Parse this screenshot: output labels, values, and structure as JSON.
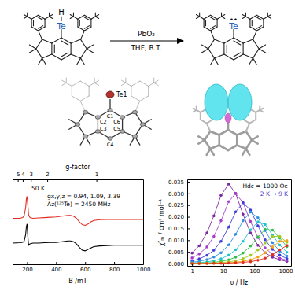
{
  "scheme": {
    "reactant_labels": [
      "H",
      "Te"
    ],
    "reagent": "PbO₂",
    "conditions": "THF, R.T.",
    "product_label": "Te"
  },
  "crystal_structure": {
    "atom_labels": [
      "Te1",
      "C1",
      "C2",
      "C3",
      "C4",
      "C5",
      "C6"
    ]
  },
  "chart_data": [
    {
      "type": "line",
      "x2label": "g-factor",
      "xlabel": "B /mT",
      "xlim": [
        100,
        1000
      ],
      "xticks": [
        200,
        400,
        600,
        800,
        1000
      ],
      "x2ticks": [
        {
          "value": 136,
          "label": "5"
        },
        {
          "value": 170,
          "label": "4"
        },
        {
          "value": 226,
          "label": "3"
        },
        {
          "value": 339,
          "label": "2"
        },
        {
          "value": 678,
          "label": "1"
        }
      ],
      "ylim": [
        0,
        12
      ],
      "yticks": [],
      "tick_labels": "x",
      "x": [
        100,
        150,
        170,
        180,
        190,
        195,
        200,
        205,
        210,
        220,
        240,
        280,
        320,
        360,
        400,
        440,
        480,
        500,
        520,
        540,
        560,
        580,
        600,
        620,
        640,
        660,
        700,
        750,
        800,
        850,
        900,
        950,
        1000
      ],
      "series": [
        {
          "color": "#e32b22",
          "values": [
            6.5,
            6.5,
            6.6,
            6.9,
            8.0,
            9.2,
            9.6,
            8.4,
            7.0,
            6.6,
            6.5,
            6.55,
            6.6,
            6.65,
            6.7,
            6.8,
            6.9,
            6.9,
            6.8,
            6.5,
            6.0,
            5.6,
            5.5,
            5.7,
            6.0,
            6.2,
            6.3,
            6.35,
            6.35,
            6.35,
            6.35,
            6.35,
            6.35
          ]
        },
        {
          "color": "#000000",
          "values": [
            3.0,
            3.05,
            3.1,
            3.3,
            4.2,
            5.3,
            5.7,
            4.0,
            2.7,
            2.9,
            3.0,
            3.0,
            3.05,
            3.1,
            3.1,
            3.2,
            3.3,
            3.3,
            3.2,
            2.9,
            2.4,
            2.0,
            1.9,
            2.1,
            2.3,
            2.5,
            2.6,
            2.65,
            2.7,
            2.7,
            2.7,
            2.7,
            2.7
          ]
        }
      ],
      "annotations": [
        "50 K",
        "gx,y,z = 0.94, 1.09, 3.39",
        "Az(¹²⁵Te) = 2450 MHz"
      ]
    },
    {
      "type": "line",
      "marker": "circle",
      "log": "x",
      "xlabel": "υ / Hz",
      "ylabel": "χ″ₘ / cm³ mol⁻¹",
      "xlim": [
        0.7,
        1500
      ],
      "xticks": [
        1,
        10,
        100,
        1000
      ],
      "ylim": [
        -0.001,
        0.036
      ],
      "yticks": [
        {
          "value": 0,
          "label": "0.000"
        },
        0.005,
        {
          "value": 0.01,
          "label": "0.010"
        },
        0.015,
        {
          "value": 0.02,
          "label": "0.020"
        },
        0.025,
        {
          "value": 0.03,
          "label": "0.030"
        },
        0.035
      ],
      "x": [
        1,
        1.7,
        3,
        5,
        8.5,
        15,
        25,
        43,
        75,
        130,
        220,
        380,
        650,
        1100
      ],
      "series": [
        {
          "color": "#7a2a9e",
          "values": [
            0.0045,
            0.0076,
            0.0131,
            0.0204,
            0.0292,
            0.034,
            0.03,
            0.0211,
            0.0131,
            0.0078,
            0.0046,
            0.0027,
            0.0016,
            0.0009
          ]
        },
        {
          "color": "#a63fc8",
          "values": [
            0.0024,
            0.0041,
            0.0071,
            0.0116,
            0.0183,
            0.0265,
            0.03,
            0.0261,
            0.018,
            0.0111,
            0.0067,
            0.0039,
            0.0023,
            0.0014
          ]
        },
        {
          "color": "#3d3dd8",
          "values": [
            0.0011,
            0.002,
            0.0035,
            0.0057,
            0.0095,
            0.0156,
            0.0221,
            0.026,
            0.0229,
            0.0161,
            0.0102,
            0.0061,
            0.0036,
            0.0021
          ]
        },
        {
          "color": "#2f8fe0",
          "values": [
            0.0006,
            0.0009,
            0.0017,
            0.0028,
            0.0046,
            0.008,
            0.0125,
            0.0183,
            0.022,
            0.0196,
            0.0141,
            0.0089,
            0.0053,
            0.0032
          ]
        },
        {
          "color": "#1fc3cf",
          "values": [
            0.0002,
            0.0004,
            0.0007,
            0.0012,
            0.002,
            0.0036,
            0.0059,
            0.0095,
            0.0144,
            0.0178,
            0.0167,
            0.0122,
            0.0079,
            0.0048
          ]
        },
        {
          "color": "#2cbf4a",
          "values": [
            0.0001,
            0.0002,
            0.0003,
            0.0005,
            0.0009,
            0.0016,
            0.0027,
            0.0045,
            0.0075,
            0.0114,
            0.0146,
            0.0143,
            0.0109,
            0.0072
          ]
        },
        {
          "color": "#9ccc1e",
          "values": [
            0,
            0.0001,
            0.0001,
            0.0002,
            0.0004,
            0.0007,
            0.0012,
            0.0021,
            0.0035,
            0.0058,
            0.0088,
            0.0116,
            0.0116,
            0.0091
          ]
        },
        {
          "color": "#f0a419",
          "values": [
            0,
            0,
            0.0001,
            0.0001,
            0.0002,
            0.0003,
            0.0006,
            0.001,
            0.0016,
            0.0028,
            0.0046,
            0.0071,
            0.0095,
            0.0098
          ]
        },
        {
          "color": "#e2321f",
          "values": [
            0,
            0,
            0,
            0.0001,
            0.0001,
            0.0002,
            0.0003,
            0.0005,
            0.0008,
            0.0014,
            0.0023,
            0.0038,
            0.0059,
            0.0077
          ]
        }
      ],
      "annotations": [
        "Hdc = 1000 Oe",
        "2 K → 9 K"
      ]
    }
  ]
}
